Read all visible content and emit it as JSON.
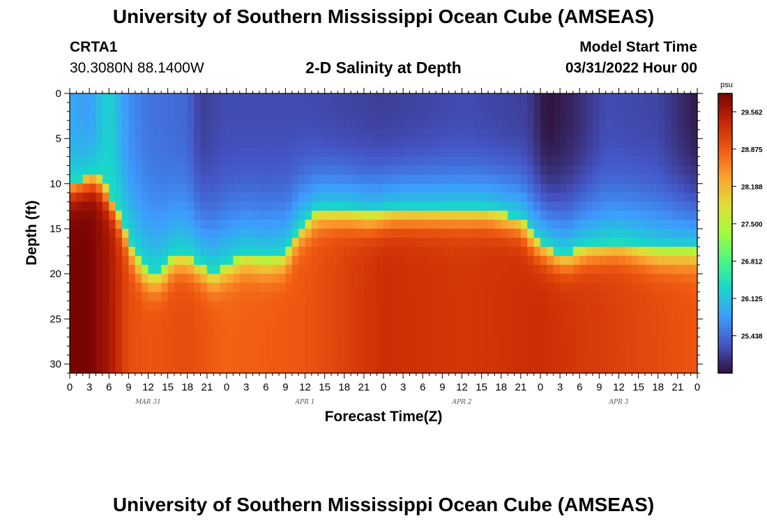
{
  "header": {
    "title": "University of Southern Mississippi Ocean Cube (AMSEAS)",
    "station": "CRTA1",
    "coords": "30.3080N  88.1400W",
    "subtitle": "2-D Salinity at Depth",
    "model_start_label": "Model Start Time",
    "model_start_value": "03/31/2022 Hour 00"
  },
  "footer": {
    "title": "University of Southern Mississippi Ocean Cube (AMSEAS)"
  },
  "chart_data": {
    "type": "heatmap",
    "title": "2-D Salinity at Depth",
    "xlabel": "Forecast Time(Z)",
    "ylabel": "Depth (ft)",
    "x_range_hours": [
      0,
      96
    ],
    "y_range_ft": [
      0,
      31
    ],
    "x_tick_labels": [
      "0",
      "3",
      "6",
      "9",
      "12",
      "15",
      "18",
      "21",
      "0",
      "3",
      "6",
      "9",
      "12",
      "15",
      "18",
      "21",
      "0",
      "3",
      "6",
      "9",
      "12",
      "15",
      "18",
      "21",
      "0",
      "3",
      "6",
      "9",
      "12",
      "15",
      "18",
      "21",
      "0"
    ],
    "y_ticks": [
      0,
      5,
      10,
      15,
      20,
      25,
      30
    ],
    "date_labels": [
      {
        "label": "MAR 31",
        "hour": 12
      },
      {
        "label": "APR 1",
        "hour": 36
      },
      {
        "label": "APR 2",
        "hour": 60
      },
      {
        "label": "APR 3",
        "hour": 84
      }
    ],
    "colorbar": {
      "unit": "psu",
      "min": 24.75,
      "max": 29.9,
      "tick_labels": [
        "29.562",
        "28.875",
        "28.188",
        "27.500",
        "26.812",
        "26.125",
        "25.438"
      ],
      "tick_values": [
        29.562,
        28.875,
        28.188,
        27.5,
        26.812,
        26.125,
        25.438
      ],
      "colors": [
        "#30123b",
        "#4454c4",
        "#3e9bfe",
        "#18d6cb",
        "#46f884",
        "#a2fc3c",
        "#e1dd37",
        "#fda231",
        "#ef5911",
        "#c42503",
        "#7a0403"
      ]
    },
    "halocline_depth_ft": [
      {
        "hour": 0,
        "depth": 10
      },
      {
        "hour": 4,
        "depth": 9
      },
      {
        "hour": 6,
        "depth": 11
      },
      {
        "hour": 8,
        "depth": 14
      },
      {
        "hour": 10,
        "depth": 18
      },
      {
        "hour": 12,
        "depth": 20
      },
      {
        "hour": 14,
        "depth": 20
      },
      {
        "hour": 16,
        "depth": 18
      },
      {
        "hour": 18,
        "depth": 18
      },
      {
        "hour": 20,
        "depth": 19
      },
      {
        "hour": 22,
        "depth": 20
      },
      {
        "hour": 24,
        "depth": 19
      },
      {
        "hour": 27,
        "depth": 18
      },
      {
        "hour": 30,
        "depth": 18.5
      },
      {
        "hour": 33,
        "depth": 18
      },
      {
        "hour": 35,
        "depth": 15
      },
      {
        "hour": 38,
        "depth": 13
      },
      {
        "hour": 42,
        "depth": 13
      },
      {
        "hour": 46,
        "depth": 13.5
      },
      {
        "hour": 50,
        "depth": 13
      },
      {
        "hour": 58,
        "depth": 13
      },
      {
        "hour": 64,
        "depth": 13
      },
      {
        "hour": 69,
        "depth": 14
      },
      {
        "hour": 71,
        "depth": 16
      },
      {
        "hour": 74,
        "depth": 17.5
      },
      {
        "hour": 76,
        "depth": 18
      },
      {
        "hour": 79,
        "depth": 17
      },
      {
        "hour": 84,
        "depth": 16.5
      },
      {
        "hour": 87,
        "depth": 17
      },
      {
        "hour": 90,
        "depth": 17.5
      },
      {
        "hour": 96,
        "depth": 17.5
      }
    ],
    "surface_salinity_psu": [
      {
        "hour": 0,
        "value": 25.9
      },
      {
        "hour": 3,
        "value": 25.8
      },
      {
        "hour": 6,
        "value": 26.3
      },
      {
        "hour": 9,
        "value": 25.7
      },
      {
        "hour": 12,
        "value": 25.5
      },
      {
        "hour": 18,
        "value": 25.4
      },
      {
        "hour": 20,
        "value": 25.1
      },
      {
        "hour": 24,
        "value": 25.2
      },
      {
        "hour": 36,
        "value": 25.2
      },
      {
        "hour": 48,
        "value": 25.1
      },
      {
        "hour": 60,
        "value": 25.2
      },
      {
        "hour": 70,
        "value": 25.1
      },
      {
        "hour": 73,
        "value": 24.75
      },
      {
        "hour": 77,
        "value": 24.9
      },
      {
        "hour": 82,
        "value": 25.2
      },
      {
        "hour": 90,
        "value": 25.15
      },
      {
        "hour": 96,
        "value": 24.8
      }
    ],
    "bottom_salinity_psu": [
      {
        "hour": 0,
        "value": 29.9
      },
      {
        "hour": 3,
        "value": 29.9
      },
      {
        "hour": 6,
        "value": 29.6
      },
      {
        "hour": 9,
        "value": 29.0
      },
      {
        "hour": 12,
        "value": 28.9
      },
      {
        "hour": 18,
        "value": 29.0
      },
      {
        "hour": 21,
        "value": 28.9
      },
      {
        "hour": 24,
        "value": 28.8
      },
      {
        "hour": 36,
        "value": 28.9
      },
      {
        "hour": 48,
        "value": 29.3
      },
      {
        "hour": 60,
        "value": 29.2
      },
      {
        "hour": 72,
        "value": 29.3
      },
      {
        "hour": 84,
        "value": 29.1
      },
      {
        "hour": 96,
        "value": 28.9
      }
    ]
  }
}
